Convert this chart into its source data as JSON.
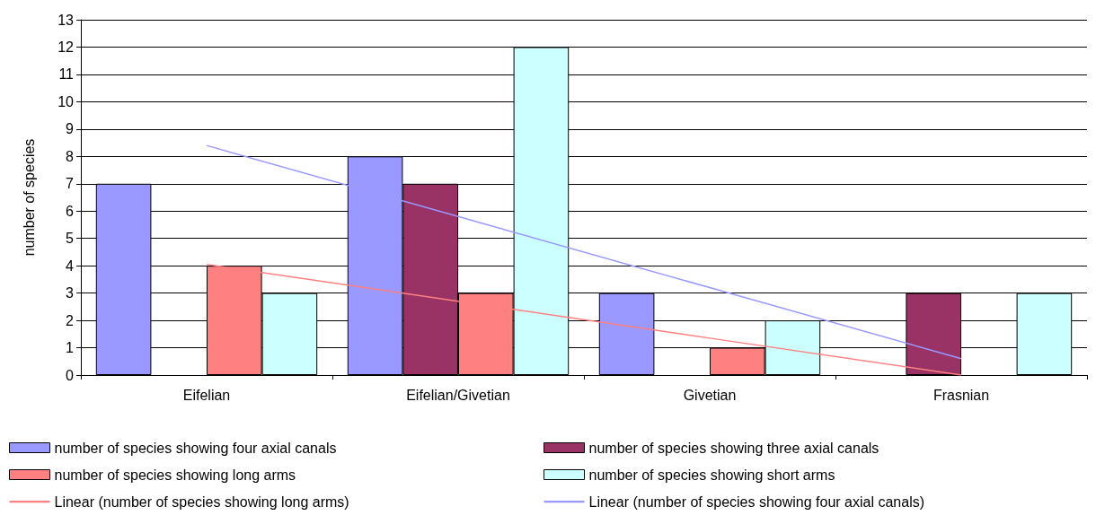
{
  "chart_data": {
    "type": "bar",
    "ylabel": "number of species",
    "categories": [
      "Eifelian",
      "Eifelian/Givetian",
      "Givetian",
      "Frasnian"
    ],
    "series": [
      {
        "name": "number of species showing four axial canals",
        "color": "#9999ff",
        "values": [
          7,
          8,
          3,
          null
        ]
      },
      {
        "name": "number of species showing three axial canals",
        "color": "#993366",
        "values": [
          null,
          7,
          null,
          3
        ]
      },
      {
        "name": "number of species showing long arms",
        "color": "#ff8080",
        "values": [
          4,
          3,
          1,
          null
        ]
      },
      {
        "name": "number of species showing short arms",
        "color": "#ccffff",
        "values": [
          3,
          12,
          2,
          3
        ]
      },
      {
        "name": "Linear (number of species showing long arms)",
        "type": "line",
        "color": "#ff8080",
        "values": [
          4.05,
          2.7,
          1.35,
          0
        ]
      },
      {
        "name": "Linear (number of species showing four axial canals)",
        "type": "line",
        "color": "#9999ff",
        "values": [
          8.4,
          5.8,
          3.2,
          0.6
        ]
      }
    ],
    "ylim": [
      0,
      13
    ],
    "yticks": [
      0,
      1,
      2,
      3,
      4,
      5,
      6,
      7,
      8,
      9,
      10,
      11,
      12,
      13
    ],
    "grid": "y",
    "legend": "bottom",
    "marker": "none",
    "line_style": "solid"
  }
}
